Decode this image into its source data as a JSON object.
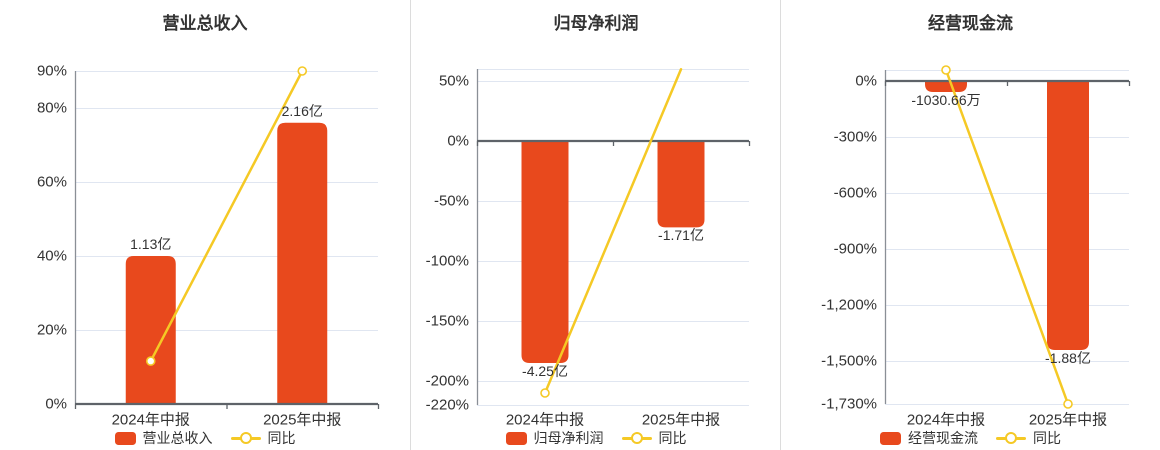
{
  "colors": {
    "bar": "#E8491D",
    "line": "#F5C925",
    "grid": "#E0E6F1",
    "zero_axis": "#5E6369",
    "y_axis": "#8A8F96",
    "divider": "#DCDCDC",
    "text": "#333333",
    "marker_fill": "#FFFFFF"
  },
  "chart_data": [
    {
      "type": "bar+line",
      "title": "营业总收入",
      "categories": [
        "2024年中报",
        "2025年中报"
      ],
      "ylim": [
        0,
        90
      ],
      "yticks": [
        {
          "value": 90,
          "label": "90%"
        },
        {
          "value": 80,
          "label": "80%"
        },
        {
          "value": 60,
          "label": "60%"
        },
        {
          "value": 40,
          "label": "40%"
        },
        {
          "value": 20,
          "label": "20%"
        },
        {
          "value": 0,
          "label": "0%"
        }
      ],
      "grid_values": [
        90,
        80,
        60,
        40,
        20
      ],
      "bar_series": {
        "name": "营业总收入",
        "labels": [
          "1.13亿",
          "2.16亿"
        ],
        "plot_pct": [
          40,
          76
        ],
        "label_side": [
          "above",
          "above"
        ]
      },
      "line_series": {
        "name": "同比",
        "plot_pct": [
          11.6,
          90
        ],
        "markers": [
          true,
          true
        ]
      },
      "legend": {
        "bar": "营业总收入",
        "line": "同比"
      }
    },
    {
      "type": "bar+line",
      "title": "归母净利润",
      "categories": [
        "2024年中报",
        "2025年中报"
      ],
      "ylim": [
        -220,
        60
      ],
      "yticks": [
        {
          "value": 50,
          "label": "50%"
        },
        {
          "value": 0,
          "label": "0%"
        },
        {
          "value": -50,
          "label": "-50%"
        },
        {
          "value": -100,
          "label": "-100%"
        },
        {
          "value": -150,
          "label": "-150%"
        },
        {
          "value": -200,
          "label": "-200%"
        },
        {
          "value": -220,
          "label": "-220%"
        }
      ],
      "grid_values": [
        60,
        50,
        -50,
        -100,
        -150,
        -200,
        -220
      ],
      "bar_series": {
        "name": "归母净利润",
        "labels": [
          "-4.25亿",
          "-1.71亿"
        ],
        "plot_pct": [
          -185,
          -72
        ],
        "label_side": [
          "below",
          "below"
        ]
      },
      "line_series": {
        "name": "同比",
        "plot_pct": [
          -210,
          59.8
        ],
        "markers": [
          true,
          false
        ]
      },
      "legend": {
        "bar": "归母净利润",
        "line": "同比"
      }
    },
    {
      "type": "bar+line",
      "title": "经营现金流",
      "categories": [
        "2024年中报",
        "2025年中报"
      ],
      "ylim": [
        -1730,
        59
      ],
      "yticks": [
        {
          "value": 0,
          "label": "0%"
        },
        {
          "value": -300,
          "label": "-300%"
        },
        {
          "value": -600,
          "label": "-600%"
        },
        {
          "value": -900,
          "label": "-900%"
        },
        {
          "value": -1200,
          "label": "-1,200%"
        },
        {
          "value": -1500,
          "label": "-1,500%"
        },
        {
          "value": -1730,
          "label": "-1,730%"
        }
      ],
      "grid_values": [
        59,
        -300,
        -600,
        -900,
        -1200,
        -1500,
        -1730
      ],
      "bar_series": {
        "name": "经营现金流",
        "labels": [
          "-1030.66万",
          "-1.88亿"
        ],
        "plot_pct": [
          -59,
          -1441
        ],
        "label_side": [
          "below",
          "below"
        ]
      },
      "line_series": {
        "name": "同比",
        "plot_pct": [
          59,
          -1730
        ],
        "markers": [
          true,
          true
        ]
      },
      "legend": {
        "bar": "经营现金流",
        "line": "同比"
      }
    }
  ]
}
